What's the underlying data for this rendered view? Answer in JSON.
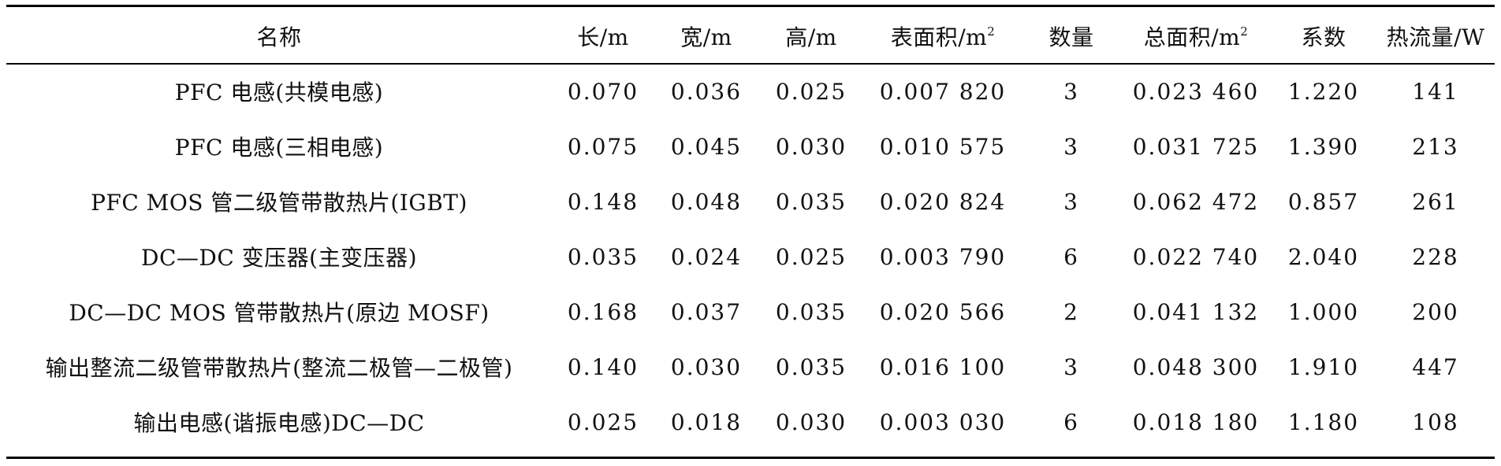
{
  "headers": [
    {
      "text": "名称",
      "sup": ""
    },
    {
      "text": "长/m",
      "sup": ""
    },
    {
      "text": "宽/m",
      "sup": ""
    },
    {
      "text": "高/m",
      "sup": ""
    },
    {
      "text": "表面积/m",
      "sup": "2"
    },
    {
      "text": "数量",
      "sup": ""
    },
    {
      "text": "总面积/m",
      "sup": "2"
    },
    {
      "text": "系数",
      "sup": ""
    },
    {
      "text": "热流量/W",
      "sup": ""
    }
  ],
  "rows": [
    [
      "PFC 电感(共模电感)",
      "0.070",
      "0.036",
      "0.025",
      "0.007 820",
      "3",
      "0.023 460",
      "1.220",
      "141"
    ],
    [
      "PFC 电感(三相电感)",
      "0.075",
      "0.045",
      "0.030",
      "0.010 575",
      "3",
      "0.031 725",
      "1.390",
      "213"
    ],
    [
      "PFC MOS 管二级管带散热片(IGBT)",
      "0.148",
      "0.048",
      "0.035",
      "0.020 824",
      "3",
      "0.062 472",
      "0.857",
      "261"
    ],
    [
      "DC—DC 变压器(主变压器)",
      "0.035",
      "0.024",
      "0.025",
      "0.003 790",
      "6",
      "0.022 740",
      "2.040",
      "228"
    ],
    [
      "DC—DC MOS 管带散热片(原边 MOSF)",
      "0.168",
      "0.037",
      "0.035",
      "0.020 566",
      "2",
      "0.041 132",
      "1.000",
      "200"
    ],
    [
      "输出整流二级管带散热片(整流二极管—二极管)",
      "0.140",
      "0.030",
      "0.035",
      "0.016 100",
      "3",
      "0.048 300",
      "1.910",
      "447"
    ],
    [
      "输出电感(谐振电感)DC—DC",
      "0.025",
      "0.018",
      "0.030",
      "0.003 030",
      "6",
      "0.018 180",
      "1.180",
      "108"
    ]
  ]
}
